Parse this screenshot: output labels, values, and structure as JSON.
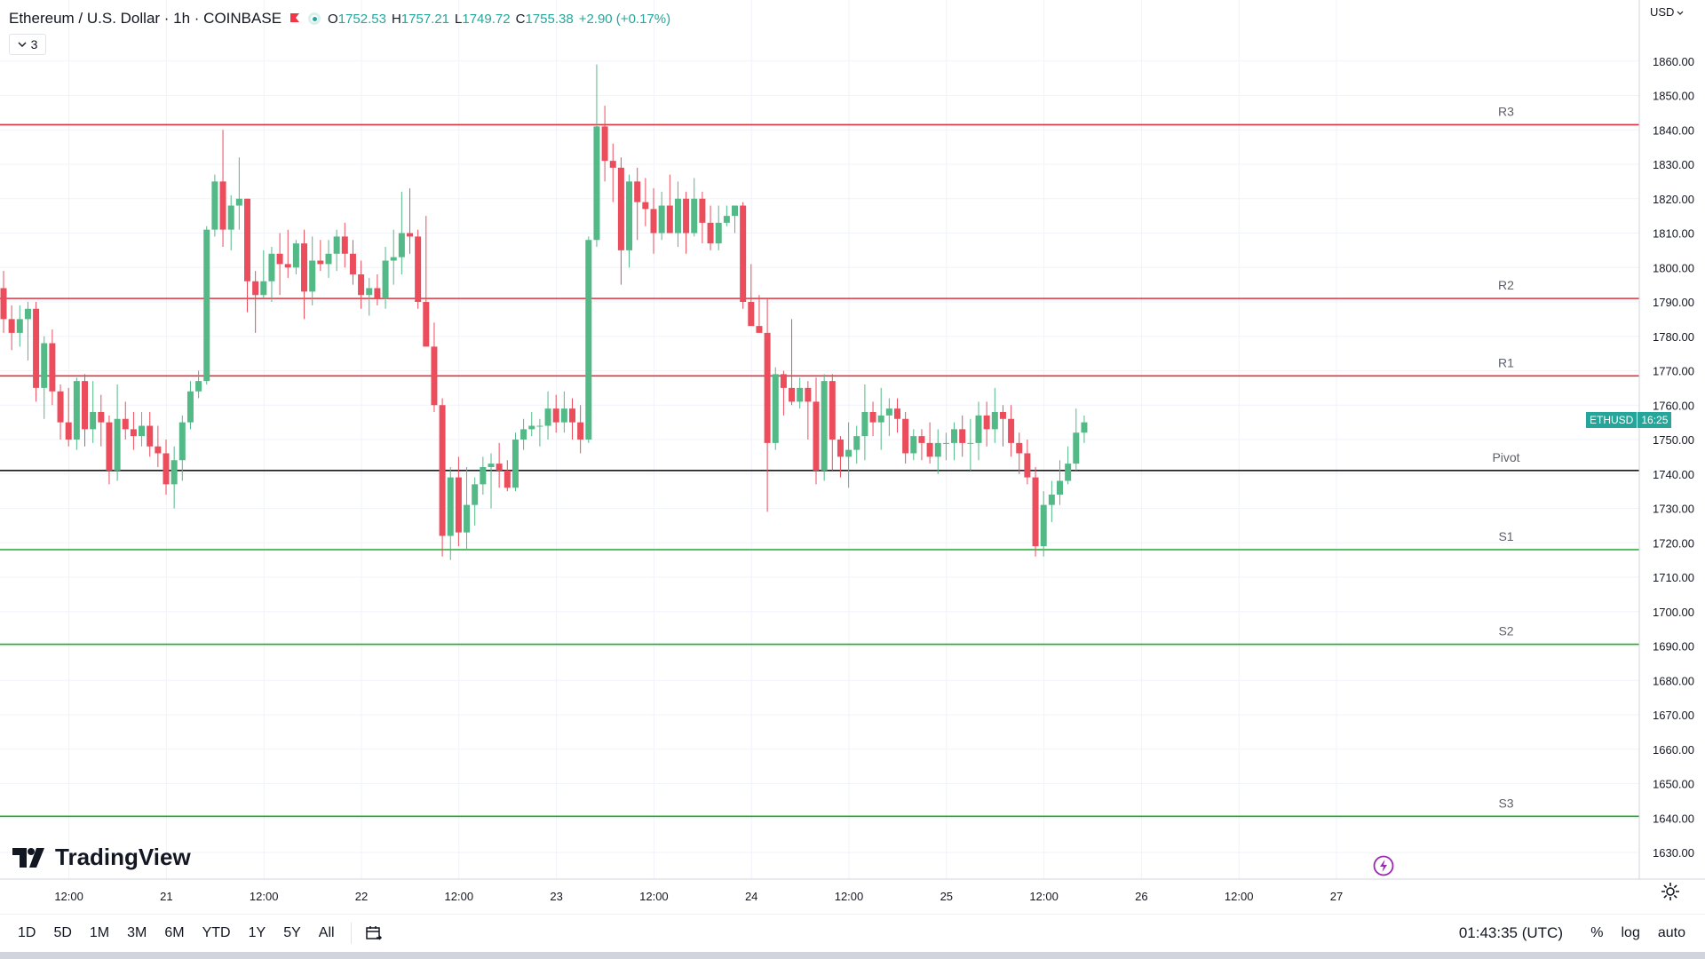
{
  "header": {
    "symbol_title": "Ethereum / U.S. Dollar · 1h · COINBASE",
    "ohlc": {
      "open_label": "O",
      "open": "1752.53",
      "high_label": "H",
      "high": "1757.21",
      "low_label": "L",
      "low": "1749.72",
      "close_label": "C",
      "close": "1755.38",
      "change": "+2.90 (+0.17%)"
    },
    "indicator_count": "3"
  },
  "price_scale": {
    "currency": "USD"
  },
  "last_price_tag": {
    "ticker": "ETHUSD",
    "countdown": "16:25"
  },
  "colors": {
    "up": "#26a69a",
    "up_candle": "#53b987",
    "down": "#eb4d5c",
    "resistance": "#e0323f",
    "support": "#1fab2c",
    "pivot": "#000000",
    "grid": "#f0f3fa"
  },
  "chart_data": {
    "type": "candlestick",
    "ylim": [
      1625,
      1875
    ],
    "y_ticks": [
      1630,
      1640,
      1650,
      1660,
      1670,
      1680,
      1690,
      1700,
      1710,
      1720,
      1730,
      1740,
      1750,
      1760,
      1770,
      1780,
      1790,
      1800,
      1810,
      1820,
      1830,
      1840,
      1850,
      1860
    ],
    "x_ticks": [
      {
        "label": "12:00",
        "bar": 4
      },
      {
        "label": "21",
        "bar": 16
      },
      {
        "label": "12:00",
        "bar": 28
      },
      {
        "label": "22",
        "bar": 40
      },
      {
        "label": "12:00",
        "bar": 52
      },
      {
        "label": "23",
        "bar": 64
      },
      {
        "label": "12:00",
        "bar": 76
      },
      {
        "label": "24",
        "bar": 88
      },
      {
        "label": "12:00",
        "bar": 100
      },
      {
        "label": "25",
        "bar": 112
      },
      {
        "label": "12:00",
        "bar": 124
      },
      {
        "label": "26",
        "bar": 136
      },
      {
        "label": "12:00",
        "bar": 148
      },
      {
        "label": "27",
        "bar": 160
      }
    ],
    "levels": [
      {
        "label": "R3",
        "value": 1841.5,
        "kind": "resistance"
      },
      {
        "label": "R2",
        "value": 1791.0,
        "kind": "resistance"
      },
      {
        "label": "R1",
        "value": 1768.5,
        "kind": "resistance"
      },
      {
        "label": "Pivot",
        "value": 1741.0,
        "kind": "pivot"
      },
      {
        "label": "S1",
        "value": 1718.0,
        "kind": "support"
      },
      {
        "label": "S2",
        "value": 1690.5,
        "kind": "support"
      },
      {
        "label": "S3",
        "value": 1640.5,
        "kind": "support"
      }
    ],
    "ohlc": [
      [
        1794,
        1799,
        1781,
        1785
      ],
      [
        1785,
        1789,
        1776,
        1781
      ],
      [
        1781,
        1789,
        1777,
        1785
      ],
      [
        1785,
        1790,
        1773,
        1788
      ],
      [
        1788,
        1790,
        1761,
        1765
      ],
      [
        1765,
        1780,
        1756,
        1778
      ],
      [
        1778,
        1782,
        1760,
        1764
      ],
      [
        1764,
        1766,
        1750,
        1755
      ],
      [
        1755,
        1765,
        1748,
        1750
      ],
      [
        1750,
        1768,
        1747,
        1767
      ],
      [
        1767,
        1769,
        1748,
        1753
      ],
      [
        1753,
        1767,
        1749,
        1758
      ],
      [
        1758,
        1763,
        1748,
        1755
      ],
      [
        1755,
        1757,
        1737,
        1741
      ],
      [
        1741,
        1766,
        1738,
        1756
      ],
      [
        1756,
        1761,
        1750,
        1753
      ],
      [
        1753,
        1758,
        1747,
        1751
      ],
      [
        1751,
        1758,
        1748,
        1754
      ],
      [
        1754,
        1758,
        1745,
        1748
      ],
      [
        1748,
        1754,
        1742,
        1746
      ],
      [
        1746,
        1750,
        1734,
        1737
      ],
      [
        1737,
        1748,
        1730,
        1744
      ],
      [
        1744,
        1757,
        1738,
        1755
      ],
      [
        1755,
        1767,
        1753,
        1764
      ],
      [
        1764,
        1770,
        1762,
        1767
      ],
      [
        1767,
        1812,
        1766,
        1811
      ],
      [
        1811,
        1827,
        1809,
        1825
      ],
      [
        1825,
        1840,
        1806,
        1811
      ],
      [
        1811,
        1821,
        1805,
        1818
      ],
      [
        1818,
        1832,
        1811,
        1820
      ],
      [
        1820,
        1820,
        1787,
        1796
      ],
      [
        1796,
        1799,
        1781,
        1792
      ],
      [
        1792,
        1805,
        1791,
        1796
      ],
      [
        1796,
        1806,
        1790,
        1804
      ],
      [
        1804,
        1810,
        1792,
        1801
      ],
      [
        1801,
        1811,
        1797,
        1800
      ],
      [
        1800,
        1808,
        1798,
        1807
      ],
      [
        1807,
        1811,
        1785,
        1793
      ],
      [
        1793,
        1809,
        1789,
        1802
      ],
      [
        1802,
        1808,
        1799,
        1801
      ],
      [
        1801,
        1808,
        1797,
        1804
      ],
      [
        1804,
        1811,
        1799,
        1809
      ],
      [
        1809,
        1813,
        1800,
        1804
      ],
      [
        1804,
        1808,
        1795,
        1798
      ],
      [
        1798,
        1802,
        1788,
        1792
      ],
      [
        1792,
        1797,
        1786,
        1794
      ],
      [
        1794,
        1798,
        1789,
        1791
      ],
      [
        1791,
        1806,
        1788,
        1802
      ],
      [
        1802,
        1811,
        1795,
        1803
      ],
      [
        1803,
        1822,
        1798,
        1810
      ],
      [
        1810,
        1823,
        1804,
        1809
      ],
      [
        1809,
        1811,
        1788,
        1790
      ],
      [
        1790,
        1815,
        1778,
        1777
      ],
      [
        1777,
        1784,
        1758,
        1760
      ],
      [
        1760,
        1762,
        1716,
        1722
      ],
      [
        1722,
        1742,
        1715,
        1739
      ],
      [
        1739,
        1745,
        1719,
        1723
      ],
      [
        1723,
        1742,
        1718,
        1731
      ],
      [
        1731,
        1739,
        1725,
        1737
      ],
      [
        1737,
        1745,
        1734,
        1742
      ],
      [
        1742,
        1746,
        1730,
        1743
      ],
      [
        1743,
        1749,
        1736,
        1741
      ],
      [
        1741,
        1744,
        1735,
        1736
      ],
      [
        1736,
        1752,
        1735,
        1750
      ],
      [
        1750,
        1756,
        1747,
        1753
      ],
      [
        1753,
        1758,
        1751,
        1754
      ],
      [
        1754,
        1756,
        1748,
        1754
      ],
      [
        1754,
        1764,
        1750,
        1759
      ],
      [
        1759,
        1763,
        1752,
        1755
      ],
      [
        1755,
        1764,
        1752,
        1759
      ],
      [
        1759,
        1762,
        1750,
        1755
      ],
      [
        1755,
        1760,
        1746,
        1750
      ],
      [
        1750,
        1809,
        1749,
        1808
      ],
      [
        1808,
        1859,
        1806,
        1841
      ],
      [
        1841,
        1847,
        1825,
        1831
      ],
      [
        1831,
        1836,
        1819,
        1829
      ],
      [
        1829,
        1832,
        1795,
        1805
      ],
      [
        1805,
        1827,
        1800,
        1825
      ],
      [
        1825,
        1829,
        1808,
        1819
      ],
      [
        1819,
        1826,
        1812,
        1817
      ],
      [
        1817,
        1823,
        1804,
        1810
      ],
      [
        1810,
        1822,
        1808,
        1818
      ],
      [
        1818,
        1827,
        1812,
        1810
      ],
      [
        1810,
        1825,
        1806,
        1820
      ],
      [
        1820,
        1822,
        1804,
        1810
      ],
      [
        1810,
        1826,
        1809,
        1820
      ],
      [
        1820,
        1822,
        1807,
        1813
      ],
      [
        1813,
        1818,
        1805,
        1807
      ],
      [
        1807,
        1818,
        1805,
        1813
      ],
      [
        1813,
        1818,
        1812,
        1815
      ],
      [
        1815,
        1818,
        1810,
        1818
      ],
      [
        1818,
        1819,
        1788,
        1790
      ],
      [
        1790,
        1801,
        1785,
        1783
      ],
      [
        1783,
        1792,
        1781,
        1781
      ],
      [
        1781,
        1791,
        1729,
        1749
      ],
      [
        1749,
        1771,
        1747,
        1769
      ],
      [
        1769,
        1770,
        1757,
        1765
      ],
      [
        1765,
        1785,
        1760,
        1761
      ],
      [
        1761,
        1768,
        1759,
        1765
      ],
      [
        1765,
        1767,
        1750,
        1761
      ],
      [
        1761,
        1768,
        1737,
        1741
      ],
      [
        1741,
        1769,
        1738,
        1767
      ],
      [
        1767,
        1769,
        1741,
        1750
      ],
      [
        1750,
        1751,
        1739,
        1745
      ],
      [
        1745,
        1755,
        1736,
        1747
      ],
      [
        1747,
        1754,
        1743,
        1751
      ],
      [
        1751,
        1766,
        1744,
        1758
      ],
      [
        1758,
        1761,
        1751,
        1755
      ],
      [
        1755,
        1765,
        1747,
        1757
      ],
      [
        1757,
        1762,
        1751,
        1759
      ],
      [
        1759,
        1762,
        1752,
        1756
      ],
      [
        1756,
        1758,
        1743,
        1746
      ],
      [
        1746,
        1753,
        1744,
        1751
      ],
      [
        1751,
        1753,
        1744,
        1749
      ],
      [
        1749,
        1755,
        1743,
        1745
      ],
      [
        1745,
        1753,
        1740,
        1749
      ],
      [
        1749,
        1752,
        1744,
        1749
      ],
      [
        1749,
        1755,
        1744,
        1753
      ],
      [
        1753,
        1757,
        1745,
        1749
      ],
      [
        1749,
        1756,
        1741,
        1749
      ],
      [
        1749,
        1761,
        1744,
        1757
      ],
      [
        1757,
        1761,
        1748,
        1753
      ],
      [
        1753,
        1765,
        1749,
        1758
      ],
      [
        1758,
        1760,
        1748,
        1756
      ],
      [
        1756,
        1760,
        1745,
        1749
      ],
      [
        1749,
        1752,
        1740,
        1746
      ],
      [
        1746,
        1750,
        1737,
        1739
      ],
      [
        1739,
        1742,
        1716,
        1719
      ],
      [
        1719,
        1735,
        1716,
        1731
      ],
      [
        1731,
        1738,
        1726,
        1734
      ],
      [
        1734,
        1744,
        1731,
        1738
      ],
      [
        1738,
        1748,
        1737,
        1743
      ],
      [
        1743,
        1759,
        1741,
        1752
      ],
      [
        1752,
        1757,
        1749,
        1755
      ]
    ]
  },
  "bottom_bar": {
    "ranges": [
      "1D",
      "5D",
      "1M",
      "3M",
      "6M",
      "YTD",
      "1Y",
      "5Y",
      "All"
    ],
    "clock": "01:43:35 (UTC)",
    "percent_label": "%",
    "log_label": "log",
    "auto_label": "auto"
  },
  "branding": {
    "logo_text": "TradingView"
  }
}
